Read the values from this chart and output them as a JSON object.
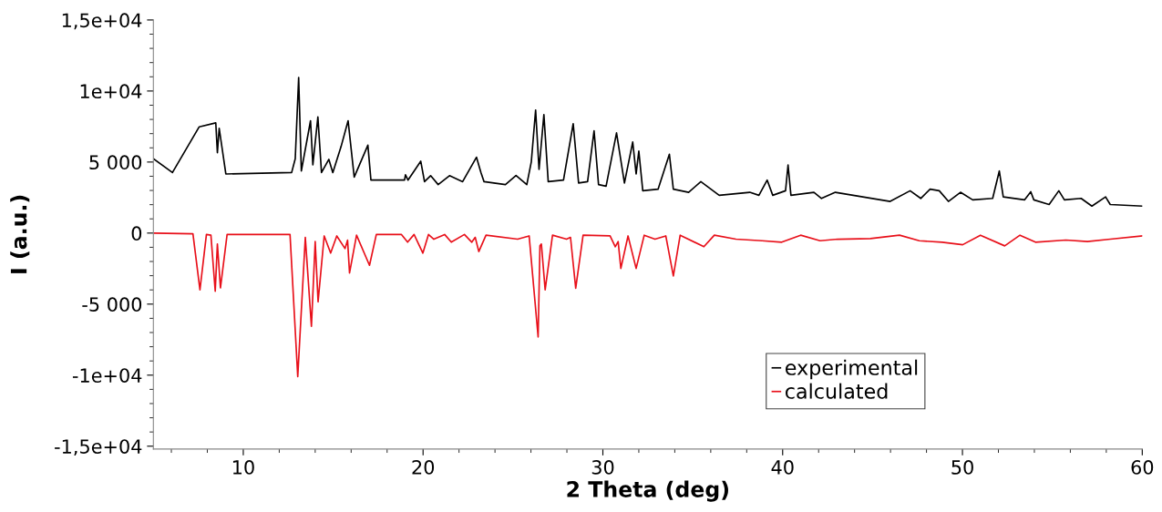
{
  "chart_data": {
    "type": "line",
    "xlabel": "2 Theta (deg)",
    "ylabel": "I (a.u.)",
    "xlim": [
      5,
      60
    ],
    "xticks": [
      10,
      20,
      30,
      40,
      50,
      60
    ],
    "ylim": [
      -15200,
      15000
    ],
    "yticks": [
      {
        "value": 15000,
        "label": "1,5e+04"
      },
      {
        "value": 10000,
        "label": "1e+04"
      },
      {
        "value": 5000,
        "label": "5 000"
      },
      0,
      {
        "value": -5000,
        "label": "-5 000"
      },
      {
        "value": -10000,
        "label": "-1e+04"
      },
      {
        "value": -15000,
        "label": "-1,5e+04"
      }
    ],
    "grid": false,
    "legend": "bottom",
    "marker": "none",
    "line_style": "solid",
    "series": [
      {
        "name": "experimental",
        "color": "#000000",
        "x": [
          5.0,
          6.06,
          7.55,
          8.47,
          8.56,
          8.66,
          9.03,
          12.69,
          12.89,
          13.08,
          13.23,
          13.74,
          13.87,
          14.15,
          14.35,
          14.76,
          14.98,
          15.44,
          15.83,
          16.17,
          16.93,
          17.1,
          18.97,
          19.02,
          19.16,
          19.87,
          20.08,
          20.42,
          20.84,
          21.47,
          22.2,
          22.97,
          23.22,
          23.39,
          24.58,
          25.17,
          25.77,
          26.02,
          26.26,
          26.45,
          26.72,
          26.96,
          27.81,
          28.35,
          28.65,
          29.15,
          29.51,
          29.76,
          30.18,
          30.76,
          31.2,
          31.66,
          31.85,
          32.0,
          32.22,
          33.07,
          33.7,
          33.92,
          34.77,
          35.45,
          36.47,
          38.17,
          38.68,
          39.14,
          39.45,
          40.16,
          40.3,
          40.46,
          41.74,
          42.16,
          42.93,
          45.98,
          47.09,
          47.68,
          48.2,
          48.71,
          49.22,
          49.89,
          50.57,
          51.68,
          52.05,
          52.27,
          53.46,
          53.8,
          53.97,
          54.82,
          55.36,
          55.67,
          56.6,
          57.2,
          57.96,
          58.22,
          60.0
        ],
        "values": [
          5230,
          4260,
          7480,
          7760,
          5660,
          7380,
          4160,
          4260,
          5230,
          10950,
          4370,
          7910,
          4800,
          8170,
          4260,
          5190,
          4260,
          6090,
          7910,
          3940,
          6190,
          3730,
          3730,
          4100,
          3730,
          5060,
          3620,
          4040,
          3410,
          4040,
          3620,
          5340,
          4260,
          3620,
          3410,
          4050,
          3410,
          5020,
          8660,
          4480,
          8340,
          3620,
          3730,
          7700,
          3520,
          3620,
          7200,
          3410,
          3300,
          7050,
          3520,
          6410,
          4160,
          5770,
          2980,
          3090,
          5550,
          3090,
          2870,
          3620,
          2660,
          2870,
          2660,
          3730,
          2660,
          2980,
          4800,
          2660,
          2870,
          2440,
          2870,
          2230,
          2980,
          2440,
          3090,
          2980,
          2230,
          2870,
          2340,
          2440,
          4370,
          2550,
          2340,
          2910,
          2340,
          2010,
          2980,
          2340,
          2440,
          1900,
          2550,
          2010,
          1900
        ]
      },
      {
        "name": "calculated",
        "color": "#e8101a",
        "x": [
          5.0,
          7.2,
          7.59,
          7.95,
          8.2,
          8.44,
          8.56,
          8.73,
          9.1,
          12.6,
          13.03,
          13.45,
          13.79,
          14.0,
          14.16,
          14.5,
          14.86,
          15.2,
          15.66,
          15.8,
          15.91,
          16.3,
          17.02,
          17.4,
          18.8,
          19.14,
          19.5,
          19.99,
          20.3,
          20.6,
          21.2,
          21.57,
          22.3,
          22.71,
          22.9,
          23.1,
          23.5,
          25.26,
          25.9,
          26.4,
          26.5,
          26.58,
          26.79,
          27.2,
          27.98,
          28.2,
          28.49,
          28.9,
          30.4,
          30.69,
          30.85,
          31.0,
          31.4,
          31.85,
          32.3,
          32.9,
          33.5,
          33.92,
          34.3,
          35.62,
          36.2,
          37.4,
          38.85,
          39.95,
          41.0,
          42.08,
          43.06,
          44.88,
          46.5,
          47.6,
          48.87,
          50.01,
          51.0,
          52.35,
          53.2,
          54.06,
          55.75,
          56.95,
          58.23,
          60.0
        ],
        "values": [
          0,
          -50,
          -3990,
          -100,
          -150,
          -4090,
          -770,
          -3860,
          -100,
          -100,
          -10100,
          -300,
          -6560,
          -600,
          -4840,
          -200,
          -1410,
          -200,
          -1090,
          -500,
          -2810,
          -150,
          -2270,
          -100,
          -100,
          -640,
          -100,
          -1410,
          -100,
          -430,
          -100,
          -640,
          -100,
          -640,
          -300,
          -1300,
          -150,
          -430,
          -200,
          -7310,
          -900,
          -770,
          -3990,
          -150,
          -430,
          -300,
          -3880,
          -150,
          -200,
          -960,
          -600,
          -2490,
          -200,
          -2490,
          -150,
          -430,
          -200,
          -3020,
          -150,
          -960,
          -150,
          -430,
          -540,
          -640,
          -150,
          -540,
          -430,
          -390,
          -150,
          -540,
          -640,
          -820,
          -150,
          -900,
          -150,
          -640,
          -490,
          -600,
          -430,
          -200
        ]
      }
    ]
  }
}
